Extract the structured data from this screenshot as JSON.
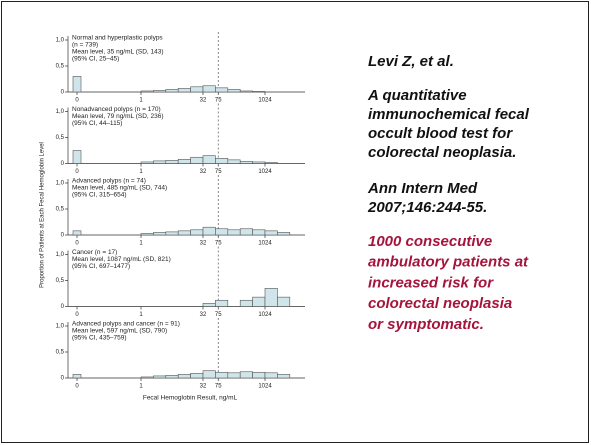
{
  "chart_data": [
    {
      "type": "histogram",
      "text_lines": [
        "Normal and hyperplastic polyps",
        "(n = 739)",
        "Mean level, 35 ng/mL (SD, 143)",
        "(95% CI, 25–45)"
      ],
      "zero_value": 0.3,
      "bins": [
        1,
        2,
        4,
        8,
        16,
        32,
        64,
        128,
        256,
        512,
        1024,
        2048,
        4096
      ],
      "counts": [
        0.02,
        0.03,
        0.05,
        0.07,
        0.1,
        0.12,
        0.08,
        0.05,
        0.02,
        0.01,
        0,
        0
      ],
      "xlim": [
        0,
        4096
      ],
      "xticks": [
        0,
        1,
        32,
        75,
        1024
      ],
      "refline": 75,
      "ylim": [
        0,
        1
      ],
      "yticks": [
        0,
        {
          "value": 0.5,
          "label": "0,5"
        },
        {
          "value": 1,
          "label": "1,0"
        }
      ],
      "color": "#cfe5ea"
    },
    {
      "type": "histogram",
      "text_lines": [
        "Nonadvanced polyps (n = 170)",
        "Mean level, 79 ng/mL (SD, 236)",
        "(95% CI, 44–115)"
      ],
      "zero_value": 0.25,
      "bins": [
        1,
        2,
        4,
        8,
        16,
        32,
        64,
        128,
        256,
        512,
        1024,
        2048,
        4096
      ],
      "counts": [
        0.03,
        0.05,
        0.06,
        0.08,
        0.12,
        0.15,
        0.1,
        0.07,
        0.04,
        0.03,
        0.02,
        0
      ],
      "xlim": [
        0,
        4096
      ],
      "xticks": [
        0,
        1,
        32,
        75,
        1024
      ],
      "refline": 75,
      "ylim": [
        0,
        1
      ],
      "yticks": [
        0,
        {
          "value": 0.5,
          "label": "0,5"
        },
        {
          "value": 1,
          "label": "1,0"
        }
      ],
      "color": "#cfe5ea"
    },
    {
      "type": "histogram",
      "text_lines": [
        "Advanced polyps (n = 74)",
        "Mean level, 485 ng/mL (SD, 744)",
        "(95% CI, 315–654)"
      ],
      "zero_value": 0.08,
      "bins": [
        1,
        2,
        4,
        8,
        16,
        32,
        64,
        128,
        256,
        512,
        1024,
        2048,
        4096
      ],
      "counts": [
        0.03,
        0.05,
        0.06,
        0.08,
        0.1,
        0.15,
        0.12,
        0.1,
        0.12,
        0.1,
        0.08,
        0.05
      ],
      "xlim": [
        0,
        4096
      ],
      "xticks": [
        0,
        1,
        32,
        75,
        1024
      ],
      "refline": 75,
      "ylim": [
        0,
        1
      ],
      "yticks": [
        0,
        {
          "value": 0.5,
          "label": "0,5"
        },
        {
          "value": 1,
          "label": "1,0"
        }
      ],
      "color": "#cfe5ea"
    },
    {
      "type": "histogram",
      "text_lines": [
        "Cancer (n = 17)",
        "Mean level, 1087 ng/mL (SD, 821)",
        "(95% CI, 697–1477)"
      ],
      "zero_value": 0,
      "bins": [
        1,
        2,
        4,
        8,
        16,
        32,
        64,
        128,
        256,
        512,
        1024,
        2048,
        4096
      ],
      "counts": [
        0,
        0,
        0,
        0,
        0,
        0.06,
        0.12,
        0,
        0.12,
        0.18,
        0.35,
        0.18
      ],
      "xlim": [
        0,
        4096
      ],
      "xticks": [
        0,
        1,
        32,
        75,
        1024
      ],
      "refline": 75,
      "ylim": [
        0,
        1
      ],
      "yticks": [
        0,
        {
          "value": 0.5,
          "label": "0,5"
        },
        {
          "value": 1,
          "label": "1,0"
        }
      ],
      "color": "#cfe5ea"
    },
    {
      "type": "histogram",
      "text_lines": [
        "Advanced polyps and cancer (n = 91)",
        "Mean level, 597 ng/mL (SD, 790)",
        "(95% CI, 435–759)"
      ],
      "zero_value": 0.07,
      "bins": [
        1,
        2,
        4,
        8,
        16,
        32,
        64,
        128,
        256,
        512,
        1024,
        2048,
        4096
      ],
      "counts": [
        0.02,
        0.04,
        0.05,
        0.07,
        0.09,
        0.14,
        0.11,
        0.1,
        0.12,
        0.11,
        0.1,
        0.07
      ],
      "xlim": [
        0,
        4096
      ],
      "xticks": [
        0,
        1,
        32,
        75,
        1024
      ],
      "refline": 75,
      "ylim": [
        0,
        1
      ],
      "yticks": [
        0,
        {
          "value": 0.5,
          "label": "0,5"
        },
        {
          "value": 1,
          "label": "1,0"
        }
      ],
      "color": "#cfe5ea"
    }
  ],
  "xlabel": "Fecal Hemoglobin Result, ng/mL",
  "ylabel": "Proportion of Patients at Each Fecal Hemoglobin Level",
  "author": "Levi Z, et al.",
  "article_title": [
    "A quantitative",
    "immunochemical fecal",
    "occult blood test for",
    "colorectal neoplasia."
  ],
  "journal": [
    "Ann Intern Med",
    "2007;146:244-55."
  ],
  "note": [
    "1000 consecutive",
    "ambulatory patients at",
    "increased risk for",
    "colorectal neoplasia",
    "or symptomatic."
  ]
}
